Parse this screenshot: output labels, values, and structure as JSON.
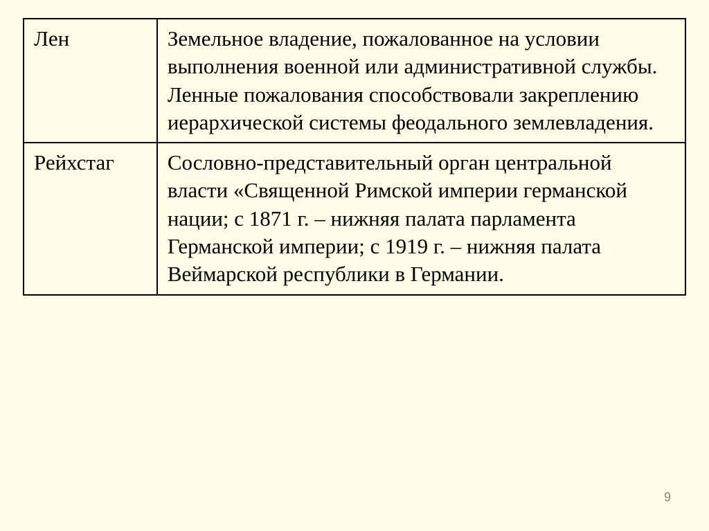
{
  "table": {
    "rows": [
      {
        "term": "Лен",
        "definition": "Земельное владение, пожалованное на условии выполнения военной или административной службы. Ленные пожалования способствовали закреплению иерархической системы феодального землевладения."
      },
      {
        "term": "Рейхстаг",
        "definition": "Сословно-представительный орган центральной власти «Священной Римской империи германской нации; с 1871 г. – нижняя палата парламента Германской империи; с 1919 г. – нижняя палата Веймарской республики в Германии."
      }
    ]
  },
  "page_number": "9",
  "styling": {
    "background_color": "#fdfde8",
    "border_color": "#000000",
    "text_color": "#000000",
    "font_family": "Times New Roman",
    "cell_font_size": 31,
    "page_number_color": "#888872",
    "page_number_font_size": 18,
    "term_column_width": 193,
    "definition_column_width": 765
  }
}
